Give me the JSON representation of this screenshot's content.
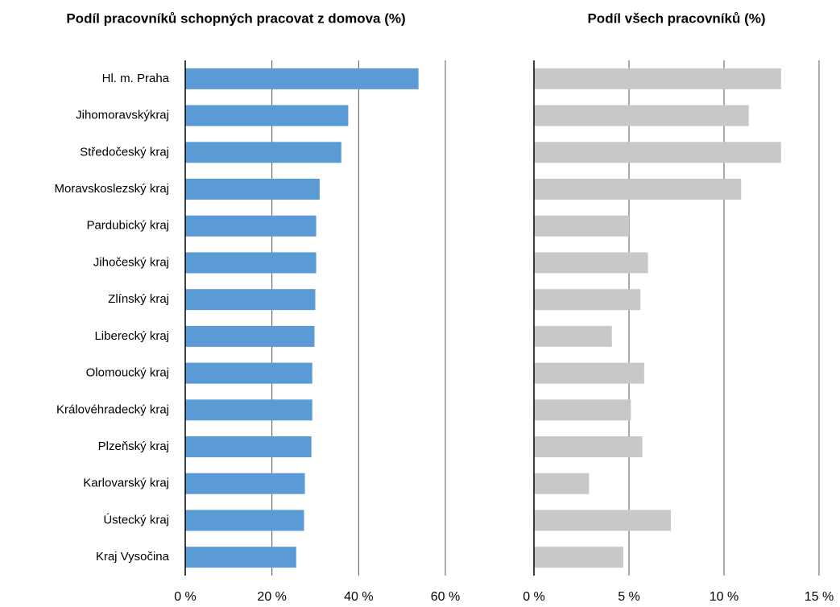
{
  "chart_data": [
    {
      "type": "bar",
      "orientation": "horizontal",
      "title": "Podíl pracovníků schopných pracovat z domova (%)",
      "categories": [
        "Hl. m. Praha",
        "Jihomoravskýkraj",
        "Středočeský kraj",
        "Moravskoslezský kraj",
        "Pardubický kraj",
        "Jihočeský kraj",
        "Zlínský kraj",
        "Liberecký kraj",
        "Olomoucký kraj",
        "Královéhradecký kraj",
        "Plzeňský kraj",
        "Karlovarský kraj",
        "Ústecký kraj",
        "Kraj Vysočina"
      ],
      "values": [
        53.8,
        37.6,
        36.0,
        31.0,
        30.2,
        30.2,
        30.0,
        29.8,
        29.3,
        29.3,
        29.1,
        27.6,
        27.4,
        25.6
      ],
      "color": "#5b9bd5",
      "xlim": [
        0,
        60
      ],
      "xticks": [
        {
          "value": 0,
          "label": "0 %"
        },
        {
          "value": 20,
          "label": "20 %"
        },
        {
          "value": 40,
          "label": "40 %"
        },
        {
          "value": 60,
          "label": "60 %"
        }
      ],
      "grid": true
    },
    {
      "type": "bar",
      "orientation": "horizontal",
      "title": "Podíl všech pracovníků (%)",
      "values": [
        13.0,
        11.3,
        13.0,
        10.9,
        5.0,
        6.0,
        5.6,
        4.1,
        5.8,
        5.1,
        5.7,
        2.9,
        7.2,
        4.7
      ],
      "color": "#c8c8c8",
      "xlim": [
        0,
        15
      ],
      "xticks": [
        {
          "value": 0,
          "label": "0 %"
        },
        {
          "value": 5,
          "label": "5 %"
        },
        {
          "value": 10,
          "label": "10 %"
        },
        {
          "value": 15,
          "label": "15 %"
        }
      ],
      "grid": true
    }
  ]
}
